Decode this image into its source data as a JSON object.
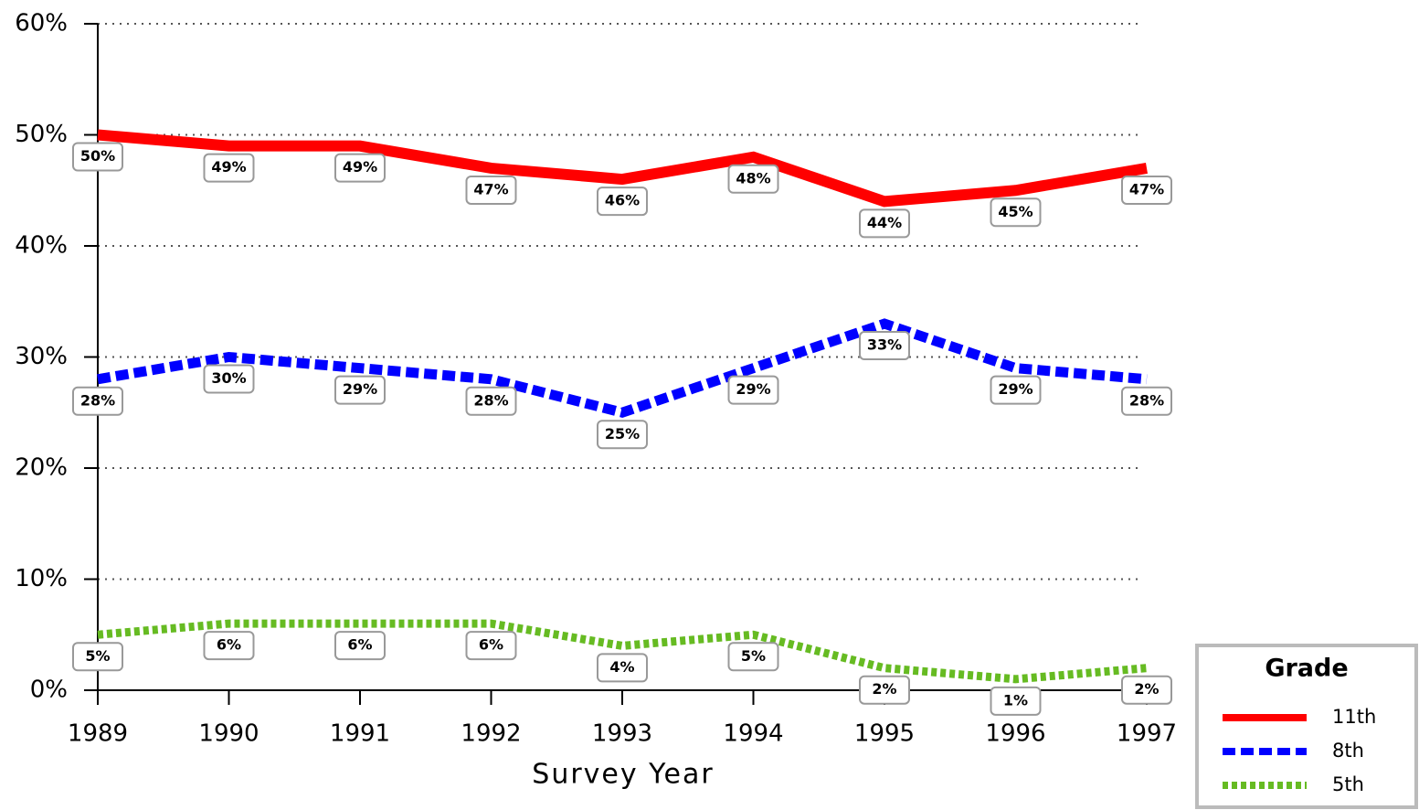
{
  "chart_data": {
    "type": "line",
    "x_label": "Survey Year",
    "categories": [
      "1989",
      "1990",
      "1991",
      "1992",
      "1993",
      "1994",
      "1995",
      "1996",
      "1997"
    ],
    "series": [
      {
        "name": "11th",
        "color": "#ff0000",
        "dash": "solid",
        "values": [
          50,
          49,
          49,
          47,
          46,
          48,
          44,
          45,
          47
        ],
        "value_labels": [
          "50%",
          "49%",
          "49%",
          "47%",
          "46%",
          "48%",
          "44%",
          "45%",
          "47%"
        ]
      },
      {
        "name": "8th",
        "color": "#0000ff",
        "dash": "dashed",
        "values": [
          28,
          30,
          29,
          28,
          25,
          29,
          33,
          29,
          28
        ],
        "value_labels": [
          "28%",
          "30%",
          "29%",
          "28%",
          "25%",
          "29%",
          "33%",
          "29%",
          "28%"
        ]
      },
      {
        "name": "5th",
        "color": "#66bb22",
        "dash": "dotted",
        "values": [
          5,
          6,
          6,
          6,
          4,
          5,
          2,
          1,
          2
        ],
        "value_labels": [
          "5%",
          "6%",
          "6%",
          "6%",
          "4%",
          "5%",
          "2%",
          "1%",
          "2%"
        ]
      }
    ],
    "ylim": [
      0,
      60
    ],
    "yticks": [
      {
        "value": 0,
        "label": "0%"
      },
      {
        "value": 10,
        "label": "10%"
      },
      {
        "value": 20,
        "label": "20%"
      },
      {
        "value": 30,
        "label": "30%"
      },
      {
        "value": 40,
        "label": "40%"
      },
      {
        "value": 50,
        "label": "50%"
      },
      {
        "value": 60,
        "label": "60%"
      }
    ],
    "grid": true,
    "legend_title": "Grade",
    "legend_position": "bottom-right"
  }
}
